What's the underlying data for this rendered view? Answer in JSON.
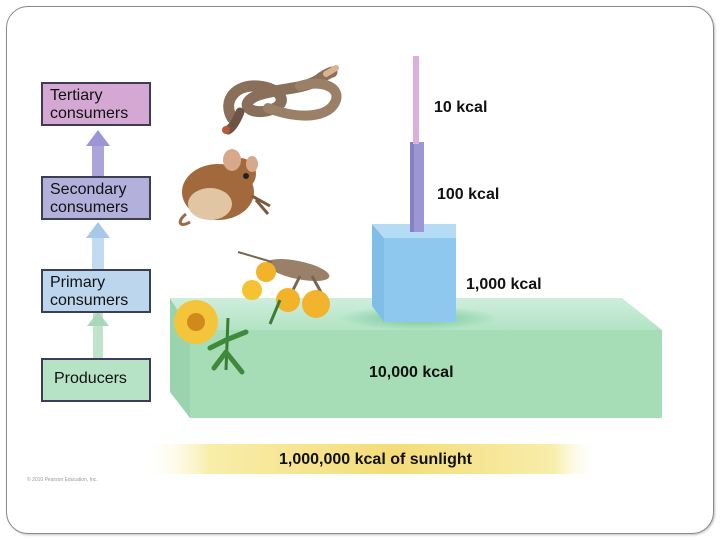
{
  "levels": [
    {
      "name": "Tertiary consumers",
      "line1": "Tertiary",
      "line2": "consumers",
      "color": "#d4a8d2"
    },
    {
      "name": "Secondary consumers",
      "line1": "Secondary",
      "line2": "consumers",
      "color": "#b4b0dc"
    },
    {
      "name": "Primary consumers",
      "line1": "Primary",
      "line2": "consumers",
      "color": "#bcd6ee"
    },
    {
      "name": "Producers",
      "line1": "Producers",
      "line2": "",
      "color": "#b6e2c6"
    }
  ],
  "energy": {
    "tertiary": "10 kcal",
    "secondary": "100 kcal",
    "primary": "1,000 kcal",
    "producers": "10,000 kcal",
    "sunlight": "1,000,000 kcal of sunlight"
  },
  "credit": "© 2010 Pearson Education, Inc.",
  "colors": {
    "producer_block": "#a8dfb8",
    "primary_block": "#8ec8ee",
    "secondary_block": "#a6a0d8",
    "tertiary_block": "#d8a8dc",
    "sunlight": "#f6e38a"
  }
}
